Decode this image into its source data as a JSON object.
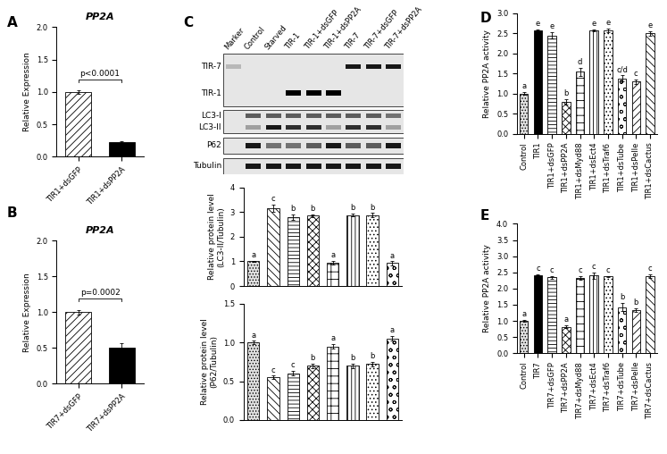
{
  "chart_data": [
    {
      "panel": "A",
      "type": "bar",
      "title": "PP2A",
      "y_label": "Relative Expression",
      "categories": [
        "TIR1+dsGFP",
        "TIR1+dsPP2A"
      ],
      "values": [
        1.0,
        0.22
      ],
      "errors": [
        0.03,
        0.02
      ],
      "colors": [
        "#ffffff",
        "#000000"
      ],
      "ylim": [
        0,
        2.0
      ],
      "yticks": [
        {
          "value": 0,
          "label": "0.0"
        },
        0.5,
        {
          "value": 1,
          "label": "1.0"
        },
        1.5,
        {
          "value": 2,
          "label": "2.0"
        }
      ],
      "annotation": "p<0.0001"
    },
    {
      "panel": "B",
      "type": "bar",
      "title": "PP2A",
      "y_label": "Relative Expression",
      "categories": [
        "TIR7+dsGFP",
        "TIR7+dsPP2A"
      ],
      "values": [
        1.0,
        0.5
      ],
      "errors": [
        0.03,
        0.06
      ],
      "colors": [
        "#ffffff",
        "#000000"
      ],
      "ylim": [
        0,
        2.0
      ],
      "yticks": [
        {
          "value": 0,
          "label": "0.0"
        },
        0.5,
        {
          "value": 1,
          "label": "1.0"
        },
        1.5,
        {
          "value": 2,
          "label": "2.0"
        }
      ],
      "annotation": "p=0.0002"
    },
    {
      "panel": "C",
      "type": "blot",
      "lanes": [
        "Marker",
        "Control",
        "Starved",
        "TIR-1",
        "TIR-1+dsGFP",
        "TIR-1+dsPP2A",
        "TIR-7",
        "TIR-7+dsGFP",
        "TIR-7+dsPP2A"
      ],
      "boxes": [
        {
          "bands": [
            {
              "label": "TIR-7",
              "values": [
                0.2,
                0,
                0,
                0,
                0,
                0,
                0.9,
                0.9,
                0.9
              ]
            },
            {
              "label": "TIR-1",
              "values": [
                0,
                0,
                0,
                1.0,
                1.0,
                1.0,
                0,
                0,
                0
              ]
            }
          ]
        },
        {
          "bands": [
            {
              "label": "LC3-I",
              "values": [
                0,
                0.6,
                0.6,
                0.6,
                0.6,
                0.6,
                0.6,
                0.6,
                0.5
              ]
            },
            {
              "label": "LC3-II",
              "values": [
                0,
                0.3,
                0.9,
                0.8,
                0.8,
                0.3,
                0.8,
                0.8,
                0.3
              ]
            }
          ]
        },
        {
          "bands": [
            {
              "label": "P62",
              "values": [
                0,
                0.9,
                0.5,
                0.5,
                0.6,
                0.9,
                0.6,
                0.6,
                0.9
              ]
            }
          ]
        },
        {
          "bands": [
            {
              "label": "Tubulin",
              "values": [
                0,
                0.9,
                0.9,
                0.9,
                0.9,
                0.9,
                0.9,
                0.9,
                0.9
              ]
            }
          ]
        }
      ]
    },
    {
      "type": "bar",
      "y_label": "Relative protein level\n(LC3-II/Tubulin)",
      "categories": [
        null,
        null,
        null,
        null,
        null,
        null,
        null,
        null
      ],
      "values": [
        1.0,
        3.15,
        2.8,
        2.85,
        0.95,
        2.88,
        2.88,
        0.93
      ],
      "errors": [
        0.03,
        0.15,
        0.1,
        0.07,
        0.08,
        0.06,
        0.08,
        0.08
      ],
      "significance": [
        "a",
        "c",
        "b",
        "b",
        "a",
        "b",
        "b",
        "a"
      ],
      "colors": [
        "#e0e0e0",
        "#ffffff",
        "#ffffff",
        "#ffffff",
        "#ffffff",
        "#ffffff",
        "#ffffff",
        "#ffffff"
      ],
      "ylim": [
        0,
        4
      ],
      "yticks": [
        0,
        1,
        2,
        3,
        4
      ],
      "tick_labels": "y"
    },
    {
      "type": "bar",
      "y_label": "Relative protein level\n(P62/Tubulin)",
      "categories": [
        null,
        null,
        null,
        null,
        null,
        null,
        null,
        null
      ],
      "values": [
        1.0,
        0.55,
        0.6,
        0.7,
        0.95,
        0.7,
        0.72,
        1.05
      ],
      "errors": [
        0.02,
        0.02,
        0.03,
        0.03,
        0.03,
        0.03,
        0.03,
        0.03
      ],
      "significance": [
        "a",
        "c",
        "c",
        "b",
        "a",
        "b",
        "b",
        "a"
      ],
      "colors": [
        "#e0e0e0",
        "#ffffff",
        "#ffffff",
        "#ffffff",
        "#ffffff",
        "#ffffff",
        "#ffffff",
        "#ffffff"
      ],
      "ylim": [
        0,
        1.5
      ],
      "yticks": [
        {
          "value": 0,
          "label": "0.0"
        },
        0.5,
        {
          "value": 1,
          "label": "1.0"
        },
        1.5
      ],
      "tick_labels": "y"
    },
    {
      "panel": "D",
      "type": "bar",
      "y_label": "Relative PP2A activity",
      "categories": [
        "Control",
        "TIR1",
        "TIR1+dsGFP",
        "TIR1+dsPP2A",
        "TIR1+dsMyd88",
        "TIR1+dsEct4",
        "TIR1+dsTraf6",
        "TIR1+dsTube",
        "TIR1+dsPelle",
        "TIR1+dsCactus"
      ],
      "values": [
        1.0,
        2.57,
        2.45,
        0.8,
        1.55,
        2.57,
        2.57,
        1.38,
        1.3,
        2.5
      ],
      "errors": [
        0.03,
        0.03,
        0.07,
        0.07,
        0.1,
        0.03,
        0.04,
        0.08,
        0.05,
        0.05
      ],
      "significance": [
        "a",
        "e",
        "e",
        "b",
        "d",
        "e",
        "e",
        "c/d",
        "c",
        "e"
      ],
      "colors": [
        "#e0e0e0",
        "#000000",
        "#ffffff",
        "#ffffff",
        "#ffffff",
        "#ffffff",
        "#ffffff",
        "#ffffff",
        "#ffffff",
        "#ffffff"
      ],
      "ylim": [
        0,
        3.0
      ],
      "yticks": [
        {
          "value": 0,
          "label": "0.0"
        },
        0.5,
        {
          "value": 1,
          "label": "1.0"
        },
        1.5,
        {
          "value": 2,
          "label": "2.0"
        },
        2.5,
        {
          "value": 3,
          "label": "3.0"
        }
      ]
    },
    {
      "panel": "E",
      "type": "bar",
      "y_label": "Relative PP2A activity",
      "categories": [
        "Control",
        "TIR7",
        "TIR7+dsGFP",
        "TIR7+dsPP2A",
        "TIR7+dsMyd88",
        "TIR7+dsEct4",
        "TIR7+dsTraf6",
        "TIR7+dsTube",
        "TIR7+dsPelle",
        "TIR7+dsCactus"
      ],
      "values": [
        1.0,
        2.42,
        2.35,
        0.82,
        2.33,
        2.4,
        2.37,
        1.42,
        1.33,
        2.38
      ],
      "errors": [
        0.02,
        0.02,
        0.04,
        0.05,
        0.06,
        0.1,
        0.02,
        0.12,
        0.05,
        0.06
      ],
      "significance": [
        "a",
        "c",
        "c",
        "a",
        "c",
        "c",
        "c",
        "b",
        "b",
        "c"
      ],
      "colors": [
        "#e0e0e0",
        "#000000",
        "#ffffff",
        "#ffffff",
        "#ffffff",
        "#ffffff",
        "#ffffff",
        "#ffffff",
        "#ffffff",
        "#ffffff"
      ],
      "ylim": [
        0,
        4.0
      ],
      "yticks": [
        {
          "value": 0,
          "label": "0.0"
        },
        0.5,
        {
          "value": 1,
          "label": "1.0"
        },
        1.5,
        {
          "value": 2,
          "label": "2.0"
        },
        2.5,
        {
          "value": 3,
          "label": "3.0"
        },
        3.5,
        {
          "value": 4,
          "label": "4.0"
        }
      ]
    }
  ]
}
